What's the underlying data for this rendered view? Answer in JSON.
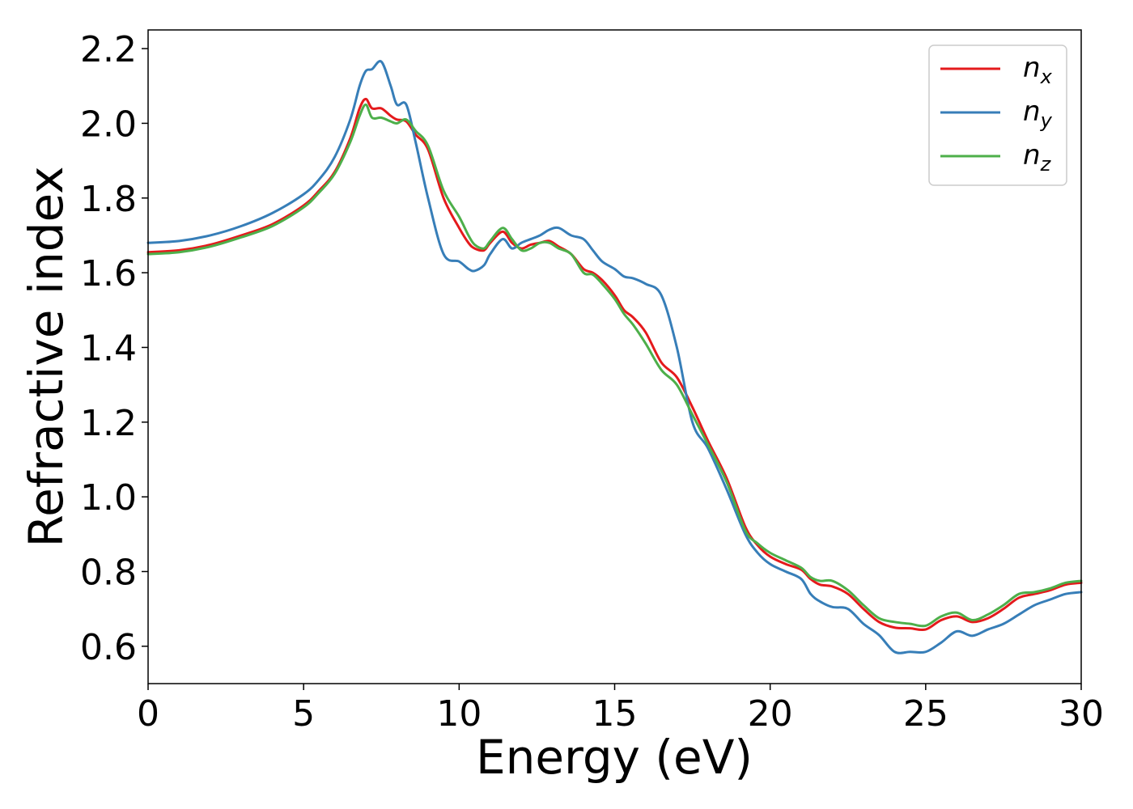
{
  "chart_data": {
    "type": "line",
    "title": "",
    "xlabel": "Energy (eV)",
    "ylabel": "Refractive index",
    "xlim": [
      0,
      30
    ],
    "ylim": [
      0.5,
      2.25
    ],
    "xticks": [
      0,
      5,
      10,
      15,
      20,
      25,
      30
    ],
    "xtick_labels": [
      "0",
      "5",
      "10",
      "15",
      "20",
      "25",
      "30"
    ],
    "yticks": [
      0.6,
      0.8,
      1.0,
      1.2,
      1.4,
      1.6,
      1.8,
      2.0,
      2.2
    ],
    "ytick_labels": [
      "0.6",
      "0.8",
      "1.0",
      "1.2",
      "1.4",
      "1.6",
      "1.8",
      "2.0",
      "2.2"
    ],
    "grid": false,
    "legend_position": "top-right",
    "series": [
      {
        "name": "n_x",
        "label_base": "n",
        "label_sub": "x",
        "color": "#e41a1c",
        "x": [
          0,
          1,
          2,
          3,
          4,
          5,
          5.5,
          6,
          6.5,
          6.8,
          7.0,
          7.2,
          7.5,
          7.8,
          8.0,
          8.3,
          8.6,
          9.0,
          9.5,
          10.0,
          10.3,
          10.5,
          10.8,
          11.0,
          11.4,
          11.7,
          12.0,
          12.3,
          12.6,
          12.9,
          13.2,
          13.6,
          14.0,
          14.3,
          14.6,
          15.0,
          15.3,
          15.6,
          16.0,
          16.5,
          17.0,
          17.5,
          18.0,
          18.6,
          19.2,
          19.6,
          20.0,
          20.5,
          21.0,
          21.3,
          21.6,
          22.0,
          22.5,
          23.0,
          23.5,
          24.0,
          24.5,
          25.0,
          25.5,
          26.0,
          26.5,
          27.0,
          27.5,
          28.0,
          28.5,
          29.0,
          29.5,
          30.0
        ],
        "y": [
          1.655,
          1.66,
          1.675,
          1.7,
          1.73,
          1.78,
          1.82,
          1.87,
          1.96,
          2.04,
          2.065,
          2.04,
          2.04,
          2.02,
          2.01,
          2.005,
          1.97,
          1.93,
          1.8,
          1.72,
          1.68,
          1.665,
          1.66,
          1.68,
          1.71,
          1.68,
          1.665,
          1.675,
          1.68,
          1.685,
          1.67,
          1.65,
          1.61,
          1.6,
          1.58,
          1.54,
          1.5,
          1.48,
          1.44,
          1.36,
          1.32,
          1.24,
          1.15,
          1.05,
          0.92,
          0.87,
          0.84,
          0.82,
          0.805,
          0.78,
          0.765,
          0.76,
          0.74,
          0.7,
          0.665,
          0.65,
          0.648,
          0.645,
          0.67,
          0.68,
          0.665,
          0.675,
          0.7,
          0.73,
          0.74,
          0.75,
          0.765,
          0.77
        ]
      },
      {
        "name": "n_y",
        "label_base": "n",
        "label_sub": "y",
        "color": "#377eb8",
        "x": [
          0,
          1,
          2,
          3,
          4,
          5,
          5.5,
          6,
          6.5,
          6.8,
          7.0,
          7.2,
          7.5,
          7.8,
          8.0,
          8.3,
          8.6,
          9.0,
          9.5,
          10.0,
          10.3,
          10.5,
          10.8,
          11.0,
          11.4,
          11.7,
          12.0,
          12.3,
          12.6,
          12.9,
          13.2,
          13.6,
          14.0,
          14.3,
          14.6,
          15.0,
          15.3,
          15.6,
          16.0,
          16.5,
          17.0,
          17.5,
          18.0,
          18.6,
          19.2,
          19.6,
          20.0,
          20.5,
          21.0,
          21.3,
          21.6,
          22.0,
          22.5,
          23.0,
          23.5,
          24.0,
          24.5,
          25.0,
          25.5,
          26.0,
          26.5,
          27.0,
          27.5,
          28.0,
          28.5,
          29.0,
          29.5,
          30.0
        ],
        "y": [
          1.68,
          1.685,
          1.7,
          1.725,
          1.76,
          1.81,
          1.85,
          1.91,
          2.01,
          2.1,
          2.14,
          2.145,
          2.165,
          2.1,
          2.05,
          2.05,
          1.95,
          1.8,
          1.65,
          1.63,
          1.61,
          1.605,
          1.62,
          1.65,
          1.69,
          1.665,
          1.68,
          1.69,
          1.7,
          1.715,
          1.72,
          1.7,
          1.69,
          1.66,
          1.63,
          1.61,
          1.59,
          1.585,
          1.57,
          1.54,
          1.4,
          1.2,
          1.13,
          1.02,
          0.9,
          0.85,
          0.82,
          0.8,
          0.78,
          0.74,
          0.72,
          0.705,
          0.7,
          0.66,
          0.63,
          0.585,
          0.585,
          0.585,
          0.61,
          0.64,
          0.628,
          0.645,
          0.66,
          0.685,
          0.71,
          0.725,
          0.74,
          0.745
        ]
      },
      {
        "name": "n_z",
        "label_base": "n",
        "label_sub": "z",
        "color": "#4daf4a",
        "x": [
          0,
          1,
          2,
          3,
          4,
          5,
          5.5,
          6,
          6.5,
          6.8,
          7.0,
          7.2,
          7.5,
          7.8,
          8.0,
          8.3,
          8.6,
          9.0,
          9.5,
          10.0,
          10.3,
          10.5,
          10.8,
          11.0,
          11.4,
          11.7,
          12.0,
          12.3,
          12.6,
          12.9,
          13.2,
          13.6,
          14.0,
          14.3,
          14.6,
          15.0,
          15.3,
          15.6,
          16.0,
          16.5,
          17.0,
          17.5,
          18.0,
          18.6,
          19.2,
          19.6,
          20.0,
          20.5,
          21.0,
          21.3,
          21.6,
          22.0,
          22.5,
          23.0,
          23.5,
          24.0,
          24.5,
          25.0,
          25.5,
          26.0,
          26.5,
          27.0,
          27.5,
          28.0,
          28.5,
          29.0,
          29.5,
          30.0
        ],
        "y": [
          1.65,
          1.655,
          1.67,
          1.695,
          1.725,
          1.775,
          1.815,
          1.865,
          1.95,
          2.02,
          2.05,
          2.015,
          2.015,
          2.005,
          2.0,
          2.01,
          1.98,
          1.94,
          1.82,
          1.75,
          1.7,
          1.675,
          1.665,
          1.685,
          1.72,
          1.69,
          1.66,
          1.665,
          1.68,
          1.68,
          1.665,
          1.65,
          1.6,
          1.595,
          1.57,
          1.53,
          1.49,
          1.46,
          1.41,
          1.34,
          1.3,
          1.22,
          1.14,
          1.04,
          0.91,
          0.875,
          0.85,
          0.83,
          0.81,
          0.785,
          0.775,
          0.775,
          0.75,
          0.71,
          0.675,
          0.665,
          0.66,
          0.655,
          0.68,
          0.69,
          0.67,
          0.685,
          0.71,
          0.74,
          0.745,
          0.755,
          0.77,
          0.775
        ]
      }
    ]
  }
}
